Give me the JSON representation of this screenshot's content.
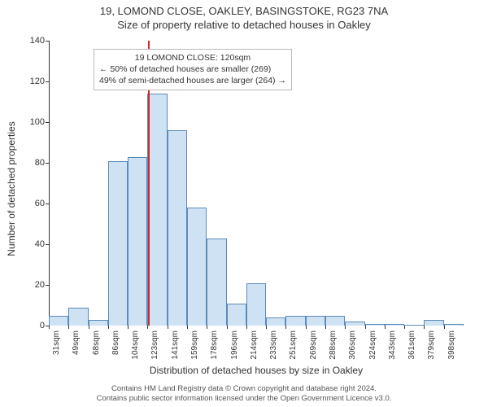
{
  "title": "19, LOMOND CLOSE, OAKLEY, BASINGSTOKE, RG23 7NA",
  "subtitle": "Size of property relative to detached houses in Oakley",
  "chart": {
    "type": "histogram",
    "ylabel": "Number of detached properties",
    "xlabel": "Distribution of detached houses by size in Oakley",
    "ylim": [
      0,
      140
    ],
    "ytick_step": 20,
    "yticks": [
      0,
      20,
      40,
      60,
      80,
      100,
      120,
      140
    ],
    "xticks": [
      "31sqm",
      "49sqm",
      "68sqm",
      "86sqm",
      "104sqm",
      "123sqm",
      "141sqm",
      "159sqm",
      "178sqm",
      "196sqm",
      "214sqm",
      "233sqm",
      "251sqm",
      "269sqm",
      "288sqm",
      "306sqm",
      "324sqm",
      "343sqm",
      "361sqm",
      "379sqm",
      "398sqm"
    ],
    "bar_values": [
      5,
      9,
      3,
      81,
      83,
      114,
      96,
      58,
      43,
      11,
      21,
      4,
      5,
      5,
      5,
      2,
      1,
      1,
      0,
      3,
      1
    ],
    "bar_fill": "#cfe2f3",
    "bar_border": "#5b8bbb",
    "marker_value_index": 5.05,
    "marker_color": "#d62728",
    "annotation": {
      "line1": "19 LOMOND CLOSE: 120sqm",
      "line2": "← 50% of detached houses are smaller (269)",
      "line3": "49% of semi-detached houses are larger (264) →"
    },
    "background_color": "#ffffff",
    "axis_color": "#333333",
    "label_fontsize": 12,
    "tick_fontsize": 11
  },
  "footer": {
    "line1": "Contains HM Land Registry data © Crown copyright and database right 2024.",
    "line2": "Contains public sector information licensed under the Open Government Licence v3.0."
  }
}
